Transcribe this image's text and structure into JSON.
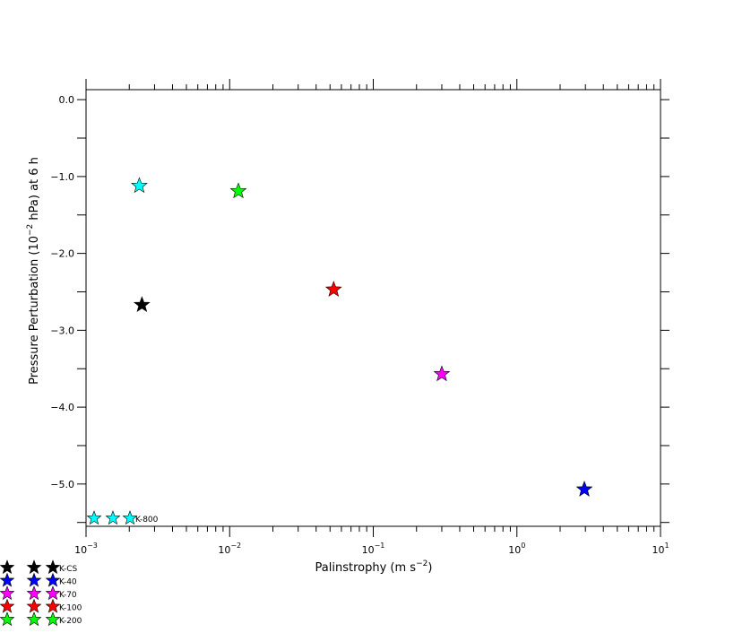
{
  "chart_data": {
    "type": "scatter",
    "title": "",
    "xlabel": "Palinstrophy  (m s",
    "xlabel_sup": "−2",
    "xlabel_end": ")",
    "ylabel": "Pressure Perturbation (10",
    "ylabel_sup": "−2",
    "ylabel_end": " hPa) at 6 h",
    "x_scale": "log",
    "xlim": [
      0.001,
      10
    ],
    "ylim": [
      -5.55,
      0.13
    ],
    "x_ticks": [
      {
        "value": 0.001,
        "base": "10",
        "exp": "−3"
      },
      {
        "value": 0.01,
        "base": "10",
        "exp": "−2"
      },
      {
        "value": 0.1,
        "base": "10",
        "exp": "−1"
      },
      {
        "value": 1,
        "base": "10",
        "exp": "0"
      },
      {
        "value": 10,
        "base": "10",
        "exp": "1"
      }
    ],
    "y_ticks": [
      {
        "value": 0.0,
        "label": "0.0"
      },
      {
        "value": -1.0,
        "label": "−1.0"
      },
      {
        "value": -2.0,
        "label": "−2.0"
      },
      {
        "value": -3.0,
        "label": "−3.0"
      },
      {
        "value": -4.0,
        "label": "−4.0"
      },
      {
        "value": -5.0,
        "label": "−5.0"
      }
    ],
    "grid": false,
    "series": [
      {
        "name": "K-CS",
        "color": "#000000",
        "x": [
          0.00245
        ],
        "y": [
          -2.67
        ]
      },
      {
        "name": "K-40",
        "color": "#0000ff",
        "x": [
          2.95
        ],
        "y": [
          -5.07
        ]
      },
      {
        "name": "K-70",
        "color": "#ff00ff",
        "x": [
          0.3
        ],
        "y": [
          -3.57
        ]
      },
      {
        "name": "K-100",
        "color": "#ff0000",
        "x": [
          0.053
        ],
        "y": [
          -2.47
        ]
      },
      {
        "name": "K-200",
        "color": "#00ff00",
        "x": [
          0.0115
        ],
        "y": [
          -1.19
        ]
      },
      {
        "name": "",
        "color": "#00ffff",
        "x": [
          0.00235
        ],
        "y": [
          -1.12
        ]
      }
    ],
    "inset_legend": {
      "name": "K-800",
      "color": "#00ffff",
      "position": "bottom-left inside plot"
    },
    "legend_placement": "bottom-left below plot"
  }
}
